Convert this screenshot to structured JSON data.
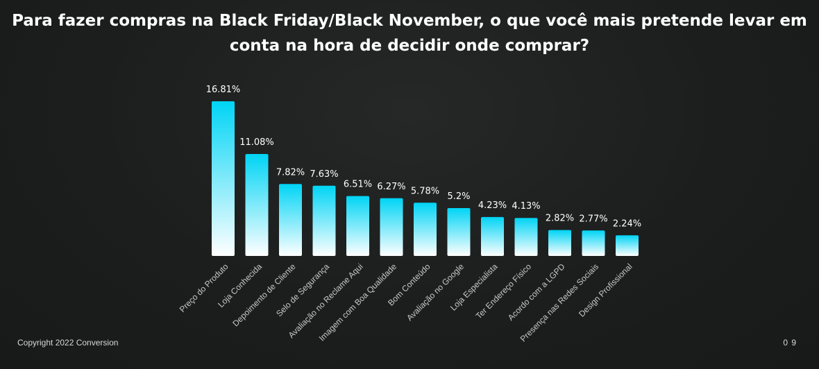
{
  "header": {
    "title_line1": "Para fazer compras na Black Friday/Black November, o que você mais pretende levar em",
    "title_line2": "conta na hora de decidir onde comprar?"
  },
  "footer": {
    "copyright": "Copyright 2022 Conversion",
    "page_number": "0 9"
  },
  "colors": {
    "bar_top": "#00d4f5",
    "bar_bottom": "#ffffff",
    "label": "#c8c8c8",
    "value_label": "#ffffff"
  },
  "chart_data": {
    "type": "bar",
    "title": "Para fazer compras na Black Friday/Black November, o que você mais pretende levar em conta na hora de decidir onde comprar?",
    "categories": [
      "Preço do Produto",
      "Loja Conhecida",
      "Depoimento de Cliente",
      "Selo de Segurança",
      "Avaliação no Reclame Aqui",
      "Imagem com Boa Qualidade",
      "Bom Conteúdo",
      "Avaliação no Google",
      "Loja Especialista",
      "Ter Endereço Físico",
      "Acordo com a LGPD",
      "Presença nas Redes Sociais",
      "Design Profissional"
    ],
    "values": [
      16.81,
      11.08,
      7.82,
      7.63,
      6.51,
      6.27,
      5.78,
      5.2,
      4.23,
      4.13,
      2.82,
      2.77,
      2.24
    ],
    "value_labels": [
      "16.81%",
      "11.08%",
      "7.82%",
      "7.63%",
      "6.51%",
      "6.27%",
      "5.78%",
      "5.2%",
      "4.23%",
      "4.13%",
      "2.82%",
      "2.77%",
      "2.24%"
    ],
    "xlabel": "",
    "ylabel": "",
    "grid": false,
    "legend": "none"
  }
}
